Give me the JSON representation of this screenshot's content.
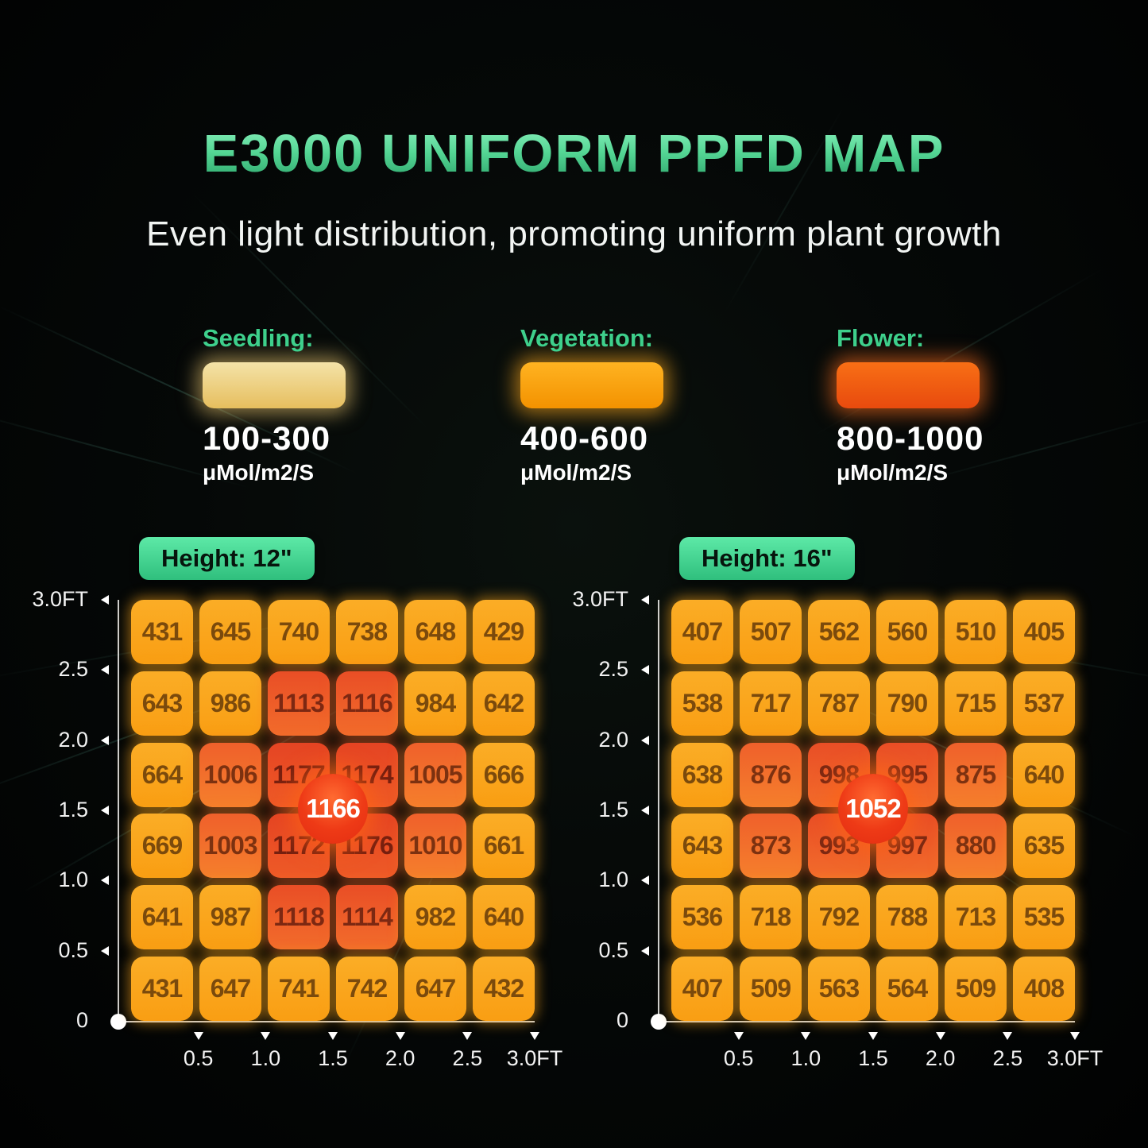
{
  "header": {
    "title": "E3000 UNIFORM PPFD MAP",
    "subtitle": "Even light distribution, promoting uniform plant growth"
  },
  "legend": {
    "items": [
      {
        "label": "Seedling:",
        "range": "100-300",
        "unit": "μMol/m2/S",
        "swatch_top": "#f4e3a8",
        "swatch_bottom": "#e6be5e",
        "glow": "rgba(255,215,120,0.55)"
      },
      {
        "label": "Vegetation:",
        "range": "400-600",
        "unit": "μMol/m2/S",
        "swatch_top": "#ffb321",
        "swatch_bottom": "#f39200",
        "glow": "rgba(255,170,30,0.6)"
      },
      {
        "label": "Flower:",
        "range": "800-1000",
        "unit": "μMol/m2/S",
        "swatch_top": "#f86f15",
        "swatch_bottom": "#e84a0e",
        "glow": "rgba(255,110,30,0.6)"
      }
    ]
  },
  "axis": {
    "y_ticks": [
      "3.0FT",
      "2.5",
      "2.0",
      "1.5",
      "1.0",
      "0.5",
      "0"
    ],
    "x_ticks": [
      "0.5",
      "1.0",
      "1.5",
      "2.0",
      "2.5",
      "3.0FT"
    ]
  },
  "palette": [
    {
      "top": "#fbad26",
      "bottom": "#f99e13",
      "text": "#7b4a0c",
      "glow": "rgba(255,168,28,0.55)"
    },
    {
      "top": "#ef602b",
      "bottom": "#f57f2c",
      "text": "#7c3110",
      "glow": "rgba(255,130,40,0.5)"
    },
    {
      "top": "#e94e26",
      "bottom": "#f26c2b",
      "text": "#7c2812",
      "glow": "rgba(255,110,40,0.5)"
    },
    {
      "top": "#e54423",
      "bottom": "#ee5b27",
      "text": "#761f0f",
      "glow": "rgba(255,100,40,0.5)"
    }
  ],
  "chart_data": [
    {
      "type": "heatmap",
      "badge_label": "Height: 12\"",
      "center_badge": "1166",
      "xlabel_unit": "FT",
      "x_range": [
        0,
        3
      ],
      "y_range": [
        0,
        3
      ],
      "values": [
        [
          431,
          645,
          740,
          738,
          648,
          429
        ],
        [
          643,
          986,
          1113,
          1116,
          984,
          642
        ],
        [
          664,
          1006,
          1177,
          1174,
          1005,
          666
        ],
        [
          669,
          1003,
          1172,
          1176,
          1010,
          661
        ],
        [
          641,
          987,
          1118,
          1114,
          982,
          640
        ],
        [
          431,
          647,
          741,
          742,
          647,
          432
        ]
      ],
      "tiers": [
        [
          0,
          0,
          0,
          0,
          0,
          0
        ],
        [
          0,
          0,
          2,
          2,
          0,
          0
        ],
        [
          0,
          1,
          3,
          3,
          1,
          0
        ],
        [
          0,
          1,
          3,
          3,
          1,
          0
        ],
        [
          0,
          0,
          2,
          2,
          0,
          0
        ],
        [
          0,
          0,
          0,
          0,
          0,
          0
        ]
      ]
    },
    {
      "type": "heatmap",
      "badge_label": "Height: 16\"",
      "center_badge": "1052",
      "xlabel_unit": "FT",
      "x_range": [
        0,
        3
      ],
      "y_range": [
        0,
        3
      ],
      "values": [
        [
          407,
          507,
          562,
          560,
          510,
          405
        ],
        [
          538,
          717,
          787,
          790,
          715,
          537
        ],
        [
          638,
          876,
          998,
          995,
          875,
          640
        ],
        [
          643,
          873,
          993,
          997,
          880,
          635
        ],
        [
          536,
          718,
          792,
          788,
          713,
          535
        ],
        [
          407,
          509,
          563,
          564,
          509,
          408
        ]
      ],
      "tiers": [
        [
          0,
          0,
          0,
          0,
          0,
          0
        ],
        [
          0,
          0,
          0,
          0,
          0,
          0
        ],
        [
          0,
          1,
          2,
          2,
          1,
          0
        ],
        [
          0,
          1,
          2,
          2,
          1,
          0
        ],
        [
          0,
          0,
          0,
          0,
          0,
          0
        ],
        [
          0,
          0,
          0,
          0,
          0,
          0
        ]
      ]
    }
  ]
}
